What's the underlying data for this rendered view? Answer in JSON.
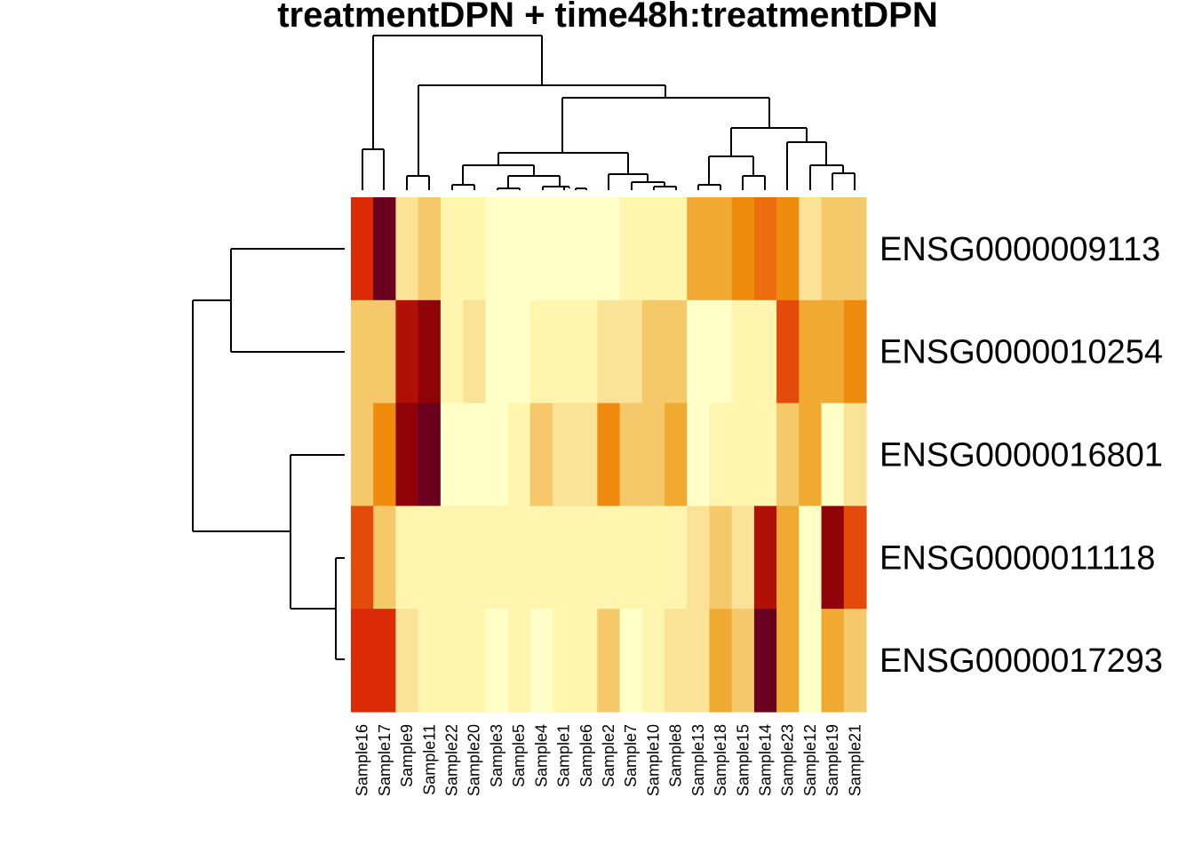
{
  "chart_data": {
    "type": "heatmap",
    "title": "treatmentDPN + time48h:treatmentDPN",
    "columns": [
      "Sample16",
      "Sample17",
      "Sample9",
      "Sample11",
      "Sample22",
      "Sample20",
      "Sample3",
      "Sample5",
      "Sample4",
      "Sample1",
      "Sample6",
      "Sample2",
      "Sample7",
      "Sample10",
      "Sample8",
      "Sample13",
      "Sample18",
      "Sample15",
      "Sample14",
      "Sample23",
      "Sample12",
      "Sample19",
      "Sample21"
    ],
    "rows": [
      "ENSG0000009113",
      "ENSG0000010254",
      "ENSG0000016801",
      "ENSG0000011118",
      "ENSG0000017293"
    ],
    "color_scale": [
      "#FFFFC8",
      "#FFF5AE",
      "#FAE296",
      "#F5C869",
      "#F0AA32",
      "#EF8C0E",
      "#EC6C0E",
      "#E44A0A",
      "#DA2A07",
      "#B01005",
      "#900409",
      "#6A0020"
    ],
    "values": [
      [
        8,
        11,
        2,
        3,
        1,
        1,
        0,
        0,
        0,
        0,
        0,
        0,
        1,
        1,
        1,
        4,
        4,
        5,
        6,
        5,
        2,
        3,
        3
      ],
      [
        3,
        3,
        9,
        10,
        1,
        2,
        0,
        0,
        1,
        1,
        1,
        2,
        2,
        3,
        3,
        0,
        0,
        1,
        1,
        7,
        4,
        4,
        5
      ],
      [
        3,
        5,
        10,
        11,
        0,
        0,
        0,
        1,
        3,
        2,
        2,
        5,
        3,
        3,
        4,
        0,
        1,
        1,
        1,
        3,
        4,
        0,
        2
      ],
      [
        7,
        3,
        1,
        1,
        1,
        1,
        1,
        1,
        1,
        1,
        1,
        1,
        1,
        1,
        1,
        2,
        3,
        2,
        9,
        4,
        0,
        10,
        7
      ],
      [
        8,
        8,
        2,
        1,
        1,
        1,
        0,
        1,
        0,
        1,
        1,
        3,
        0,
        1,
        2,
        2,
        4,
        3,
        11,
        4,
        0,
        4,
        3
      ]
    ]
  }
}
